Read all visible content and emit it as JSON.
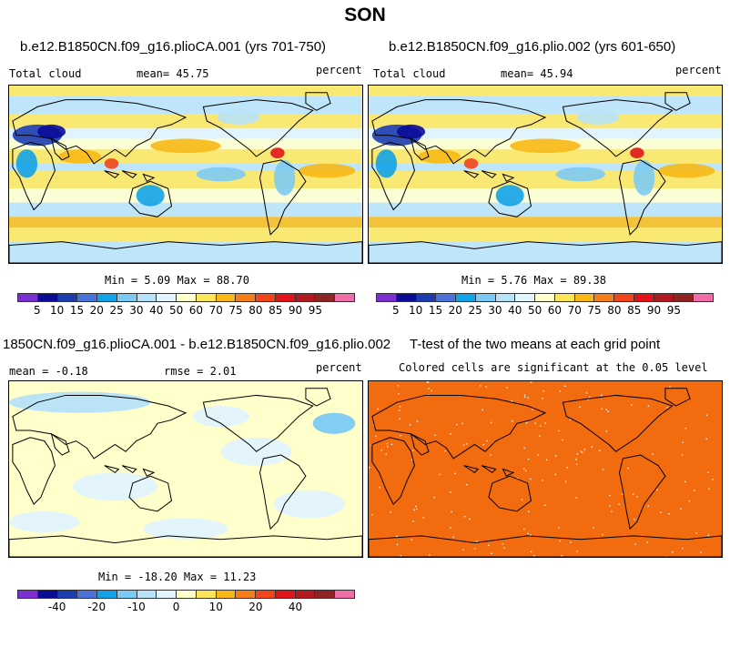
{
  "figure_title": "SON",
  "colors": {
    "abs_scale": [
      "#7b2fd0",
      "#0b0b96",
      "#1c3cb0",
      "#4a72d8",
      "#12a2e8",
      "#7ccaf3",
      "#b7e2f8",
      "#e1f3fd",
      "#ffffcc",
      "#fde55a",
      "#f7b816",
      "#f47e1a",
      "#f1461d",
      "#e0151b",
      "#b11a1f",
      "#8e2424",
      "#ef6ea8"
    ],
    "diff_scale": [
      "#7b2fd0",
      "#0b0b96",
      "#1c3cb0",
      "#4a72d8",
      "#12a2e8",
      "#7ccaf3",
      "#b7e2f8",
      "#e1f3fd",
      "#ffffcc",
      "#fde55a",
      "#f7b816",
      "#f47e1a",
      "#f1461d",
      "#e0151b",
      "#b11a1f",
      "#8e2424",
      "#ef6ea8"
    ],
    "ttest_fill": "#f26b0f",
    "land_outline": "#000000"
  },
  "panels": {
    "p1": {
      "title": "b.e12.B1850CN.f09_g16.plioCA.001 (yrs 701-750)",
      "left_label": "Total cloud",
      "mean_label": "mean=  45.75",
      "units": "percent",
      "minmax": "Min =   5.09 Max =  88.70",
      "ticks": [
        "5",
        "10",
        "15",
        "20",
        "25",
        "30",
        "40",
        "50",
        "60",
        "70",
        "75",
        "80",
        "85",
        "90",
        "95"
      ]
    },
    "p2": {
      "title": "b.e12.B1850CN.f09_g16.plio.002 (yrs 601-650)",
      "left_label": "Total cloud",
      "mean_label": "mean=  45.94",
      "units": "percent",
      "minmax": "Min =   5.76 Max =  89.38",
      "ticks": [
        "5",
        "10",
        "15",
        "20",
        "25",
        "30",
        "40",
        "50",
        "60",
        "70",
        "75",
        "80",
        "85",
        "90",
        "95"
      ]
    },
    "p3": {
      "title": "1850CN.f09_g16.plioCA.001 - b.e12.B1850CN.f09_g16.plio.002",
      "mean_label": "mean =  -0.18",
      "rmse_label": "rmse =   2.01",
      "units": "percent",
      "minmax": "Min = -18.20 Max =  11.23",
      "ticks": [
        "-40",
        "-20",
        "-10",
        "0",
        "10",
        "20",
        "40"
      ]
    },
    "p4": {
      "title": "T-test of the two means at each grid point",
      "subtitle": "Colored cells are significant at the 0.05 level"
    }
  }
}
